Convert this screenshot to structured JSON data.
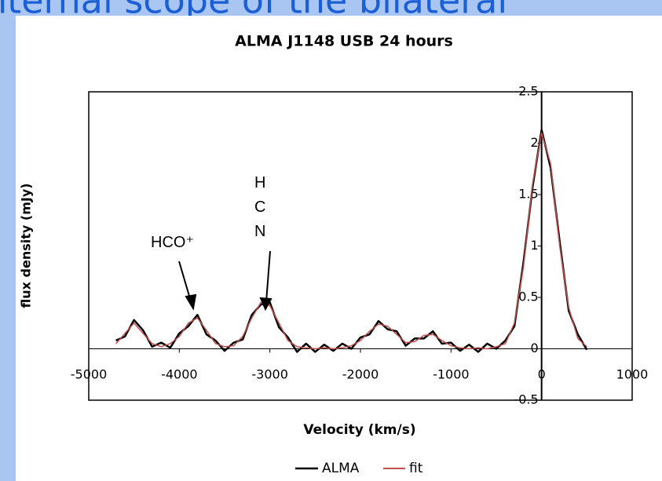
{
  "slide_heading": "nternal scope of the bilateral",
  "chart_data": {
    "type": "line",
    "title": "ALMA J1148 USB 24 hours",
    "x_label": "Velocity (km/s)",
    "y_label": "flux density (mJy)",
    "annotations": [
      "HCO⁺",
      "HCN"
    ],
    "x": [
      -4700,
      -4600,
      -4500,
      -4400,
      -4300,
      -4200,
      -4100,
      -4000,
      -3900,
      -3800,
      -3700,
      -3600,
      -3500,
      -3400,
      -3300,
      -3200,
      -3100,
      -3000,
      -2900,
      -2800,
      -2700,
      -2600,
      -2500,
      -2400,
      -2300,
      -2200,
      -2100,
      -2000,
      -1900,
      -1800,
      -1700,
      -1600,
      -1500,
      -1400,
      -1300,
      -1200,
      -1100,
      -1000,
      -900,
      -800,
      -700,
      -600,
      -500,
      -400,
      -300,
      -200,
      -100,
      0,
      100,
      200,
      300,
      400,
      500
    ],
    "series": [
      {
        "name": "ALMA",
        "color": "#000000",
        "values": [
          0.08,
          0.12,
          0.28,
          0.18,
          0.02,
          0.06,
          0.01,
          0.15,
          0.22,
          0.33,
          0.14,
          0.08,
          -0.02,
          0.06,
          0.09,
          0.33,
          0.43,
          0.45,
          0.21,
          0.11,
          -0.03,
          0.05,
          -0.03,
          0.04,
          -0.02,
          0.05,
          0.0,
          0.11,
          0.14,
          0.27,
          0.19,
          0.17,
          0.03,
          0.1,
          0.1,
          0.17,
          0.05,
          0.06,
          -0.02,
          0.04,
          -0.03,
          0.05,
          0.0,
          0.08,
          0.22,
          0.84,
          1.57,
          2.13,
          1.76,
          1.04,
          0.37,
          0.14,
          -0.01
        ]
      },
      {
        "name": "fit",
        "color": "#c0504d",
        "values": [
          0.05,
          0.15,
          0.25,
          0.15,
          0.05,
          0.02,
          0.05,
          0.12,
          0.25,
          0.3,
          0.18,
          0.05,
          0.02,
          0.03,
          0.12,
          0.3,
          0.45,
          0.42,
          0.25,
          0.08,
          0.02,
          0.01,
          0.0,
          0.01,
          0.0,
          0.01,
          0.03,
          0.08,
          0.17,
          0.24,
          0.22,
          0.14,
          0.06,
          0.07,
          0.13,
          0.14,
          0.08,
          0.03,
          0.01,
          0.0,
          0.01,
          0.0,
          0.02,
          0.05,
          0.25,
          0.8,
          1.6,
          2.1,
          1.8,
          1.0,
          0.4,
          0.1,
          0.02
        ]
      }
    ],
    "xlim": [
      -5000,
      1000
    ],
    "xticks": [
      -5000,
      -4000,
      -3000,
      -2000,
      -1000,
      0,
      1000
    ],
    "ylim": [
      -0.5,
      2.5
    ],
    "yticks": [
      -0.5,
      0,
      0.5,
      1,
      1.5,
      2,
      2.5
    ],
    "grid": false,
    "legend": "bottom"
  }
}
